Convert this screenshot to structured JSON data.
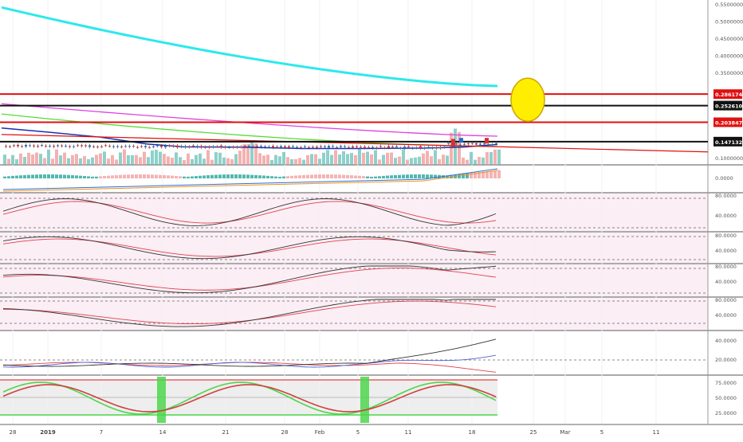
{
  "chart_data": {
    "type": "line",
    "x_axis_ticks": [
      "28",
      "2019",
      "7",
      "14",
      "21",
      "28",
      "Feb",
      "5",
      "11",
      "18",
      "25",
      "Mar",
      "5",
      "11"
    ],
    "main_price_scale": [
      "0.55000000",
      "0.50000000",
      "0.45000000",
      "0.40000000",
      "0.35000000",
      "0.10000000"
    ],
    "main_price_ylim": [
      0.05,
      0.55
    ],
    "price_labels": [
      {
        "value": "0.28617432",
        "color": "#e01010"
      },
      {
        "value": "0.25261099",
        "color": "#111111"
      },
      {
        "value": "0.20384787",
        "color": "#e01010"
      },
      {
        "value": "0.14713203",
        "color": "#111111"
      }
    ],
    "horizontal_levels": [
      {
        "value": 0.28617432,
        "color": "#e01010"
      },
      {
        "value": 0.25261099,
        "color": "#111111"
      },
      {
        "value": 0.20384787,
        "color": "#e01010"
      },
      {
        "value": 0.14713203,
        "color": "#111111"
      }
    ],
    "annotation": {
      "shape": "ellipse",
      "fill": "#ffee00",
      "stroke": "#c8a800",
      "at_value": 0.265
    },
    "macd_scale": [
      "0.0000"
    ],
    "oscillator_panels": [
      {
        "scale": [
          "80.0000",
          "40.0000"
        ]
      },
      {
        "scale": [
          "80.0000",
          "40.0000"
        ]
      },
      {
        "scale": [
          "80.0000",
          "40.0000"
        ]
      },
      {
        "scale": [
          "80.0000",
          "40.0000"
        ]
      },
      {
        "scale": [
          "40.0000",
          "20.0000"
        ]
      },
      {
        "scale": [
          "75.0000",
          "50.0000",
          "25.0000"
        ]
      }
    ],
    "colors": {
      "ema_cyan": "#2ee8ec",
      "ema_magenta": "#e040e0",
      "ema_green": "#55dd33",
      "ema_blue": "#1a2fb0",
      "up_volume": "#5fbcb4",
      "down_volume": "#f09090",
      "stoch_fast": "#333333",
      "stoch_slow": "#e04050",
      "highlight": "#4cd64c"
    }
  }
}
